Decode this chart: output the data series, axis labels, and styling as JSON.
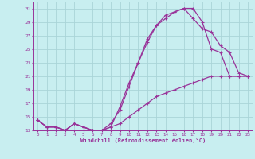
{
  "bg_color": "#c8eef0",
  "grid_color": "#aad4d8",
  "line_color": "#993399",
  "xlabel": "Windchill (Refroidissement éolien,°C)",
  "xlabel_color": "#993399",
  "tick_color": "#993399",
  "ylim": [
    13,
    32
  ],
  "xlim": [
    -0.5,
    23.5
  ],
  "yticks": [
    13,
    15,
    17,
    19,
    21,
    23,
    25,
    27,
    29,
    31
  ],
  "xticks": [
    0,
    1,
    2,
    3,
    4,
    5,
    6,
    7,
    8,
    9,
    10,
    11,
    12,
    13,
    14,
    15,
    16,
    17,
    18,
    19,
    20,
    21,
    22,
    23
  ],
  "line1_x": [
    0,
    1,
    2,
    3,
    4,
    5,
    6,
    7,
    8,
    9,
    10,
    11,
    12,
    13,
    14,
    15,
    16,
    17,
    18,
    19,
    20,
    21,
    22,
    23
  ],
  "line1_y": [
    14.5,
    13.5,
    13.5,
    13.0,
    14.0,
    13.5,
    13.0,
    13.0,
    13.5,
    16.5,
    20.0,
    23.0,
    26.5,
    28.5,
    30.0,
    30.5,
    31.0,
    31.0,
    29.0,
    25.0,
    24.5,
    21.0,
    21.0,
    21.0
  ],
  "line2_x": [
    0,
    1,
    2,
    3,
    4,
    5,
    6,
    7,
    8,
    9,
    10,
    11,
    12,
    13,
    14,
    15,
    16,
    17,
    18,
    19,
    20,
    21,
    22,
    23
  ],
  "line2_y": [
    14.5,
    13.5,
    13.5,
    13.0,
    14.0,
    13.5,
    13.0,
    13.0,
    13.5,
    14.0,
    15.0,
    16.0,
    17.0,
    18.0,
    18.5,
    19.0,
    19.5,
    20.0,
    20.5,
    21.0,
    21.0,
    21.0,
    21.0,
    21.0
  ],
  "line3_x": [
    0,
    1,
    2,
    3,
    4,
    5,
    6,
    7,
    8,
    9,
    10,
    11,
    12,
    13,
    14,
    15,
    16,
    17,
    18,
    19,
    20,
    21,
    22,
    23
  ],
  "line3_y": [
    14.5,
    13.5,
    13.5,
    13.0,
    14.0,
    13.5,
    13.0,
    13.0,
    14.0,
    16.0,
    19.5,
    23.0,
    26.0,
    28.5,
    29.5,
    30.5,
    31.0,
    29.5,
    28.0,
    27.5,
    25.5,
    24.5,
    21.5,
    21.0
  ]
}
